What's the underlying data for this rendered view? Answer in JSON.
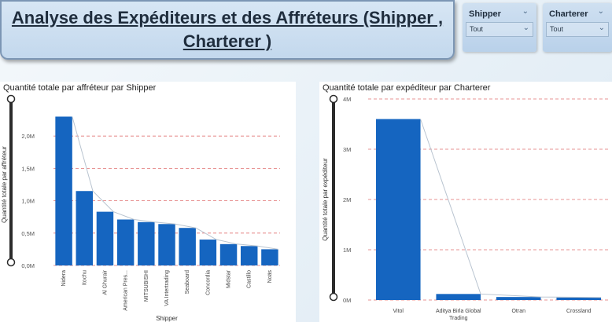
{
  "header": {
    "title": "Analyse des Expéditeurs et des Affréteurs (Shipper , Charterer )"
  },
  "filters": [
    {
      "label": "Shipper",
      "value": "Tout"
    },
    {
      "label": "Charterer",
      "value": "Tout"
    }
  ],
  "chart_data": [
    {
      "type": "bar",
      "title": "Quantité totale par affréteur par Shipper",
      "xlabel": "Shipper",
      "ylabel": "Quantité totale par affréteur",
      "categories": [
        "Nidera",
        "Itochu",
        "Al Ghurair",
        "American Pres...",
        "MITSUBISHI",
        "VA Intertrading",
        "Seaboard",
        "Concordia",
        "Midstar",
        "Castillo",
        "Noäs"
      ],
      "values": [
        2300000,
        1150000,
        830000,
        710000,
        670000,
        640000,
        580000,
        400000,
        330000,
        300000,
        250000
      ],
      "ylim": [
        0,
        2500000
      ],
      "yticks": [
        0,
        500000,
        1000000,
        1500000,
        2000000
      ],
      "ytick_labels": [
        "0,0M",
        "0,5M",
        "1,0M",
        "1,5M",
        "2,0M"
      ],
      "bar_color": "#1565c0",
      "grid": "dashed red horizontal",
      "legend": "none"
    },
    {
      "type": "bar",
      "title": "Quantité totale par expéditeur par Charterer",
      "xlabel": "",
      "ylabel": "Quantité totale par expéditeur",
      "categories": [
        "Vitol",
        "Aditya Birla Global Trading",
        "Otran",
        "Crossland"
      ],
      "values": [
        3600000,
        120000,
        60000,
        50000
      ],
      "ylim": [
        0,
        4000000
      ],
      "yticks": [
        0,
        1000000,
        2000000,
        3000000,
        4000000
      ],
      "ytick_labels": [
        "0M",
        "1M",
        "2M",
        "3M",
        "4M"
      ],
      "bar_color": "#1565c0",
      "grid": "dashed red horizontal",
      "legend": "none"
    }
  ],
  "colors": {
    "bar": "#1565c0",
    "grid": "#e07070",
    "title_card": "#c9dcef",
    "slicer": "#c3d8ed"
  },
  "icons": {
    "dropdown": "chevron-down-icon"
  }
}
